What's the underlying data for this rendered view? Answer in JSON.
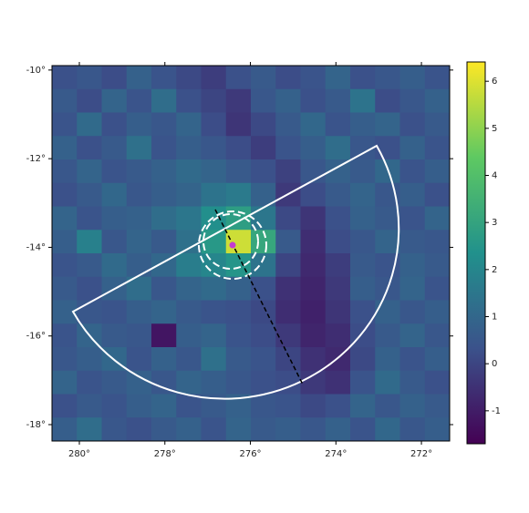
{
  "chart_data": {
    "type": "heatmap",
    "xlim": [
      280.64,
      271.34
    ],
    "ylim": [
      -18.37,
      -9.9
    ],
    "xticks": [
      {
        "value": 280,
        "label": "280°"
      },
      {
        "value": 278,
        "label": "278°"
      },
      {
        "value": 276,
        "label": "276°"
      },
      {
        "value": 274,
        "label": "274°"
      },
      {
        "value": 272,
        "label": "272°"
      }
    ],
    "yticks": [
      {
        "value": -10,
        "label": "-10°"
      },
      {
        "value": -12,
        "label": "-12°"
      },
      {
        "value": -14,
        "label": "-14°"
      },
      {
        "value": -16,
        "label": "-16°"
      },
      {
        "value": -18,
        "label": "-18°"
      }
    ],
    "clim": [
      -1.7,
      6.41
    ],
    "cticks": [
      -1,
      0,
      1,
      2,
      3,
      4,
      5,
      6
    ],
    "colormap": "viridis",
    "z": [
      [
        0.3,
        0.5,
        0.2,
        0.8,
        0.4,
        0.1,
        -0.2,
        0.3,
        0.6,
        0.2,
        0.4,
        0.9,
        0.3,
        0.5,
        0.7,
        0.4
      ],
      [
        0.6,
        0.2,
        0.9,
        0.4,
        1.2,
        0.3,
        0.0,
        -0.3,
        0.5,
        0.8,
        0.3,
        0.6,
        1.4,
        0.2,
        0.5,
        0.8
      ],
      [
        0.4,
        1.1,
        0.3,
        0.7,
        0.5,
        0.9,
        0.2,
        -0.4,
        0.1,
        0.6,
        1.0,
        0.4,
        0.7,
        0.9,
        0.3,
        0.6
      ],
      [
        0.8,
        0.3,
        0.6,
        1.3,
        0.4,
        0.7,
        0.5,
        0.2,
        -0.2,
        0.4,
        0.7,
        1.2,
        0.5,
        0.3,
        0.8,
        0.4
      ],
      [
        0.5,
        0.9,
        0.4,
        0.6,
        0.8,
        1.1,
        0.9,
        0.6,
        0.3,
        -0.1,
        0.5,
        0.8,
        0.6,
        1.0,
        0.4,
        0.7
      ],
      [
        0.3,
        0.6,
        1.0,
        0.5,
        0.7,
        0.9,
        1.4,
        1.6,
        0.8,
        -0.3,
        0.2,
        0.6,
        0.9,
        0.5,
        0.7,
        0.3
      ],
      [
        0.9,
        0.4,
        0.7,
        0.8,
        1.2,
        1.5,
        2.3,
        2.8,
        1.5,
        0.1,
        -0.4,
        0.3,
        0.8,
        0.6,
        0.4,
        0.9
      ],
      [
        0.7,
        1.8,
        0.5,
        0.9,
        0.6,
        1.3,
        2.6,
        5.8,
        3.1,
        0.6,
        -0.6,
        0.2,
        0.5,
        0.9,
        0.6,
        0.5
      ],
      [
        0.4,
        0.6,
        1.1,
        0.7,
        1.0,
        1.7,
        2.0,
        2.5,
        1.4,
        0.0,
        -0.7,
        -0.2,
        0.6,
        0.4,
        0.8,
        0.6
      ],
      [
        0.6,
        0.3,
        0.8,
        1.2,
        0.5,
        0.9,
        1.1,
        0.8,
        0.3,
        -0.5,
        -0.8,
        -0.3,
        0.7,
        0.5,
        0.9,
        0.4
      ],
      [
        0.8,
        0.5,
        0.4,
        0.7,
        0.9,
        0.6,
        0.4,
        0.3,
        0.1,
        -0.6,
        -0.9,
        -0.4,
        0.3,
        0.8,
        0.5,
        0.7
      ],
      [
        0.4,
        0.9,
        0.6,
        0.5,
        -1.2,
        0.7,
        0.9,
        0.4,
        0.2,
        -0.3,
        -0.8,
        -0.6,
        0.2,
        0.6,
        0.9,
        0.5
      ],
      [
        0.5,
        0.7,
        1.0,
        0.4,
        0.8,
        0.5,
        1.3,
        0.6,
        0.4,
        0.0,
        -0.5,
        -0.7,
        0.1,
        0.8,
        0.4,
        0.7
      ],
      [
        0.9,
        0.4,
        0.6,
        0.8,
        0.5,
        0.9,
        0.7,
        0.5,
        0.3,
        0.2,
        -0.3,
        -0.5,
        0.4,
        1.1,
        0.6,
        0.3
      ],
      [
        0.3,
        0.6,
        0.4,
        0.7,
        0.9,
        0.4,
        0.6,
        0.8,
        0.5,
        0.4,
        0.1,
        0.3,
        0.9,
        0.5,
        0.8,
        0.6
      ],
      [
        0.7,
        1.2,
        0.5,
        0.3,
        0.6,
        0.8,
        0.4,
        0.9,
        0.6,
        0.7,
        0.5,
        0.8,
        0.4,
        1.0,
        0.5,
        0.7
      ]
    ]
  }
}
